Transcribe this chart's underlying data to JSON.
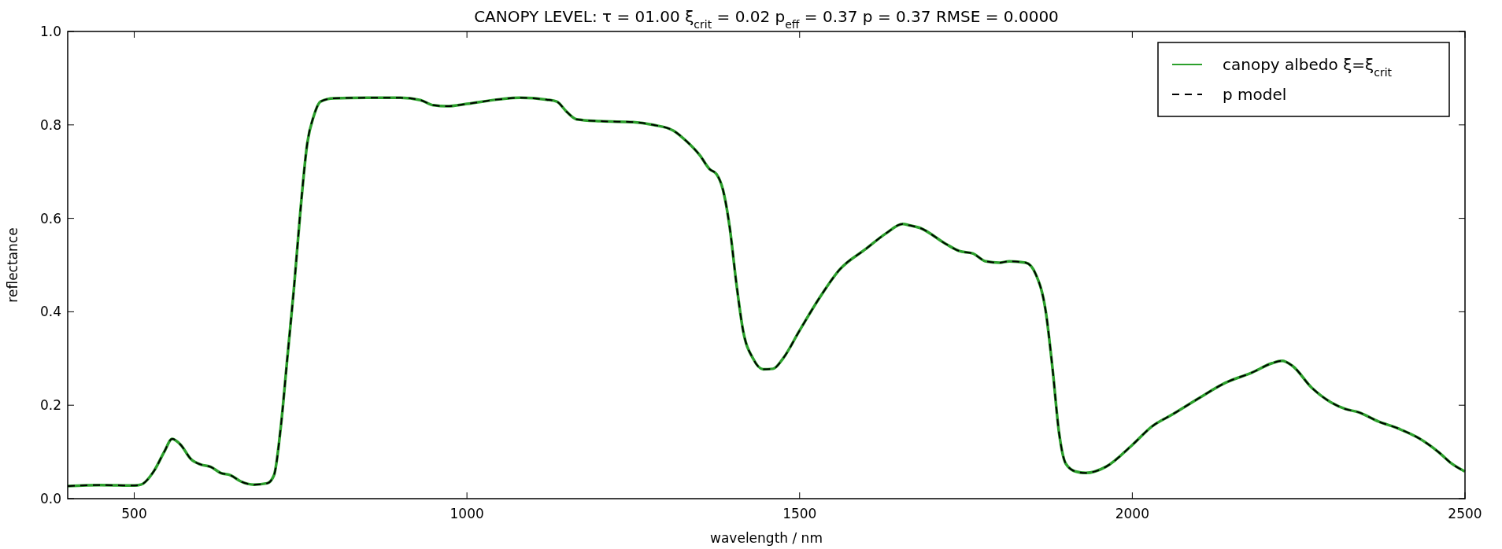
{
  "chart_data": {
    "type": "line",
    "title": "CANOPY LEVEL: τ = 01.00  ξ$_{crit}$ = 0.02 p$_{eff}$ = 0.37 p = 0.37 RMSE = 0.0000",
    "xlabel": "wavelength / nm",
    "ylabel": "reflectance",
    "x": [
      400,
      450,
      500,
      510,
      530,
      545,
      557,
      570,
      585,
      600,
      615,
      630,
      645,
      660,
      680,
      700,
      710,
      720,
      730,
      740,
      750,
      760,
      770,
      780,
      800,
      850,
      900,
      930,
      950,
      970,
      1000,
      1050,
      1080,
      1120,
      1135,
      1150,
      1165,
      1200,
      1250,
      1280,
      1310,
      1330,
      1350,
      1365,
      1375,
      1385,
      1395,
      1405,
      1415,
      1430,
      1445,
      1460,
      1475,
      1500,
      1530,
      1560,
      1600,
      1630,
      1655,
      1665,
      1680,
      1720,
      1740,
      1760,
      1780,
      1800,
      1815,
      1840,
      1855,
      1870,
      1880,
      1890,
      1900,
      1915,
      1930,
      1960,
      2000,
      2030,
      2060,
      2100,
      2140,
      2180,
      2210,
      2225,
      2240,
      2270,
      2300,
      2320,
      2340,
      2370,
      2400,
      2430,
      2460,
      2480,
      2500
    ],
    "series": [
      {
        "name": "canopy albedo ξ=ξ$_{crit}$",
        "color": "#2ca02c",
        "line_style": "solid",
        "values": [
          0.027,
          0.029,
          0.028,
          0.03,
          0.06,
          0.1,
          0.128,
          0.115,
          0.085,
          0.073,
          0.068,
          0.055,
          0.05,
          0.037,
          0.03,
          0.033,
          0.05,
          0.15,
          0.3,
          0.45,
          0.62,
          0.76,
          0.82,
          0.85,
          0.857,
          0.858,
          0.858,
          0.853,
          0.842,
          0.84,
          0.845,
          0.855,
          0.858,
          0.854,
          0.85,
          0.828,
          0.812,
          0.808,
          0.806,
          0.8,
          0.788,
          0.765,
          0.735,
          0.705,
          0.695,
          0.66,
          0.58,
          0.46,
          0.36,
          0.3,
          0.277,
          0.278,
          0.3,
          0.36,
          0.43,
          0.49,
          0.535,
          0.568,
          0.588,
          0.585,
          0.58,
          0.545,
          0.53,
          0.525,
          0.508,
          0.505,
          0.508,
          0.505,
          0.48,
          0.4,
          0.28,
          0.14,
          0.075,
          0.058,
          0.055,
          0.068,
          0.115,
          0.155,
          0.18,
          0.215,
          0.248,
          0.27,
          0.29,
          0.295,
          0.285,
          0.237,
          0.205,
          0.192,
          0.185,
          0.165,
          0.15,
          0.13,
          0.1,
          0.075,
          0.058
        ]
      },
      {
        "name": "p model",
        "color": "#000000",
        "line_style": "dashed",
        "values": [
          0.027,
          0.029,
          0.028,
          0.03,
          0.06,
          0.1,
          0.128,
          0.115,
          0.085,
          0.073,
          0.068,
          0.055,
          0.05,
          0.037,
          0.03,
          0.033,
          0.05,
          0.15,
          0.3,
          0.45,
          0.62,
          0.76,
          0.82,
          0.85,
          0.857,
          0.858,
          0.858,
          0.853,
          0.842,
          0.84,
          0.845,
          0.855,
          0.858,
          0.854,
          0.85,
          0.828,
          0.812,
          0.808,
          0.806,
          0.8,
          0.788,
          0.765,
          0.735,
          0.705,
          0.695,
          0.66,
          0.58,
          0.46,
          0.36,
          0.3,
          0.277,
          0.278,
          0.3,
          0.36,
          0.43,
          0.49,
          0.535,
          0.568,
          0.588,
          0.585,
          0.58,
          0.545,
          0.53,
          0.525,
          0.508,
          0.505,
          0.508,
          0.505,
          0.48,
          0.4,
          0.28,
          0.14,
          0.075,
          0.058,
          0.055,
          0.068,
          0.115,
          0.155,
          0.18,
          0.215,
          0.248,
          0.27,
          0.29,
          0.295,
          0.285,
          0.237,
          0.205,
          0.192,
          0.185,
          0.165,
          0.15,
          0.13,
          0.1,
          0.075,
          0.058
        ]
      }
    ],
    "xlim": [
      400,
      2500
    ],
    "xticks": [
      500,
      1000,
      1500,
      2000,
      2500
    ],
    "ylim": [
      0,
      1
    ],
    "yticks": [
      {
        "value": 0,
        "label": "0.0"
      },
      {
        "value": 0.2,
        "label": "0.2"
      },
      {
        "value": 0.4,
        "label": "0.4"
      },
      {
        "value": 0.6,
        "label": "0.6"
      },
      {
        "value": 0.8,
        "label": "0.8"
      },
      {
        "value": 1,
        "label": "1.0"
      }
    ],
    "grid": false,
    "legend": "top right"
  }
}
